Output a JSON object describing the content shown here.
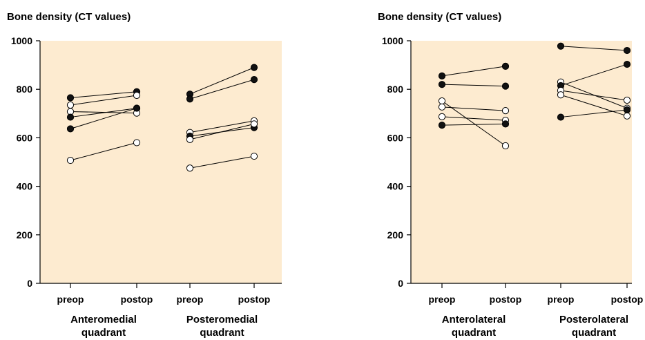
{
  "chart_data": [
    {
      "type": "scatter",
      "ylabel": "Bone density (CT values)",
      "ylim": [
        0,
        1000
      ],
      "yticks": [
        0,
        200,
        400,
        600,
        800,
        1000
      ],
      "background": "#fdebd0",
      "categories": [
        "preop",
        "postop",
        "preop",
        "postop"
      ],
      "groups": [
        {
          "label_lines": [
            "Anteromedial",
            "quadrant"
          ],
          "pairs": [
            {
              "fill": "black",
              "values": [
                765,
                790
              ]
            },
            {
              "fill": "white",
              "values": [
                735,
                775
              ]
            },
            {
              "fill": "white",
              "values": [
                708,
                702
              ]
            },
            {
              "fill": "black",
              "values": [
                685,
                722
              ]
            },
            {
              "fill": "black",
              "values": [
                637,
                722
              ]
            },
            {
              "fill": "white",
              "values": [
                507,
                580
              ]
            }
          ]
        },
        {
          "label_lines": [
            "Posteromedial",
            "quadrant"
          ],
          "pairs": [
            {
              "fill": "black",
              "values": [
                780,
                890
              ]
            },
            {
              "fill": "black",
              "values": [
                760,
                840
              ]
            },
            {
              "fill": "white",
              "values": [
                622,
                670
              ]
            },
            {
              "fill": "black",
              "values": [
                607,
                642
              ]
            },
            {
              "fill": "white",
              "values": [
                593,
                657
              ]
            },
            {
              "fill": "white",
              "values": [
                475,
                524
              ]
            }
          ]
        }
      ]
    },
    {
      "type": "scatter",
      "ylabel": "Bone density (CT values)",
      "ylim": [
        0,
        1000
      ],
      "yticks": [
        0,
        200,
        400,
        600,
        800,
        1000
      ],
      "background": "#fdebd0",
      "categories": [
        "preop",
        "postop",
        "preop",
        "postop"
      ],
      "groups": [
        {
          "label_lines": [
            "Anterolateral",
            "quadrant"
          ],
          "pairs": [
            {
              "fill": "black",
              "values": [
                855,
                895
              ]
            },
            {
              "fill": "black",
              "values": [
                820,
                813
              ]
            },
            {
              "fill": "white",
              "values": [
                752,
                567
              ]
            },
            {
              "fill": "white",
              "values": [
                727,
                712
              ]
            },
            {
              "fill": "white",
              "values": [
                687,
                672
              ]
            },
            {
              "fill": "black",
              "values": [
                652,
                657
              ]
            }
          ]
        },
        {
          "label_lines": [
            "Posterolateral",
            "quadrant"
          ],
          "pairs": [
            {
              "fill": "black",
              "values": [
                978,
                960
              ]
            },
            {
              "fill": "white",
              "values": [
                830,
                722
              ]
            },
            {
              "fill": "black",
              "values": [
                815,
                903
              ]
            },
            {
              "fill": "white",
              "values": [
                795,
                755
              ]
            },
            {
              "fill": "white",
              "values": [
                777,
                690
              ]
            },
            {
              "fill": "black",
              "values": [
                685,
                715
              ]
            }
          ]
        }
      ]
    }
  ]
}
